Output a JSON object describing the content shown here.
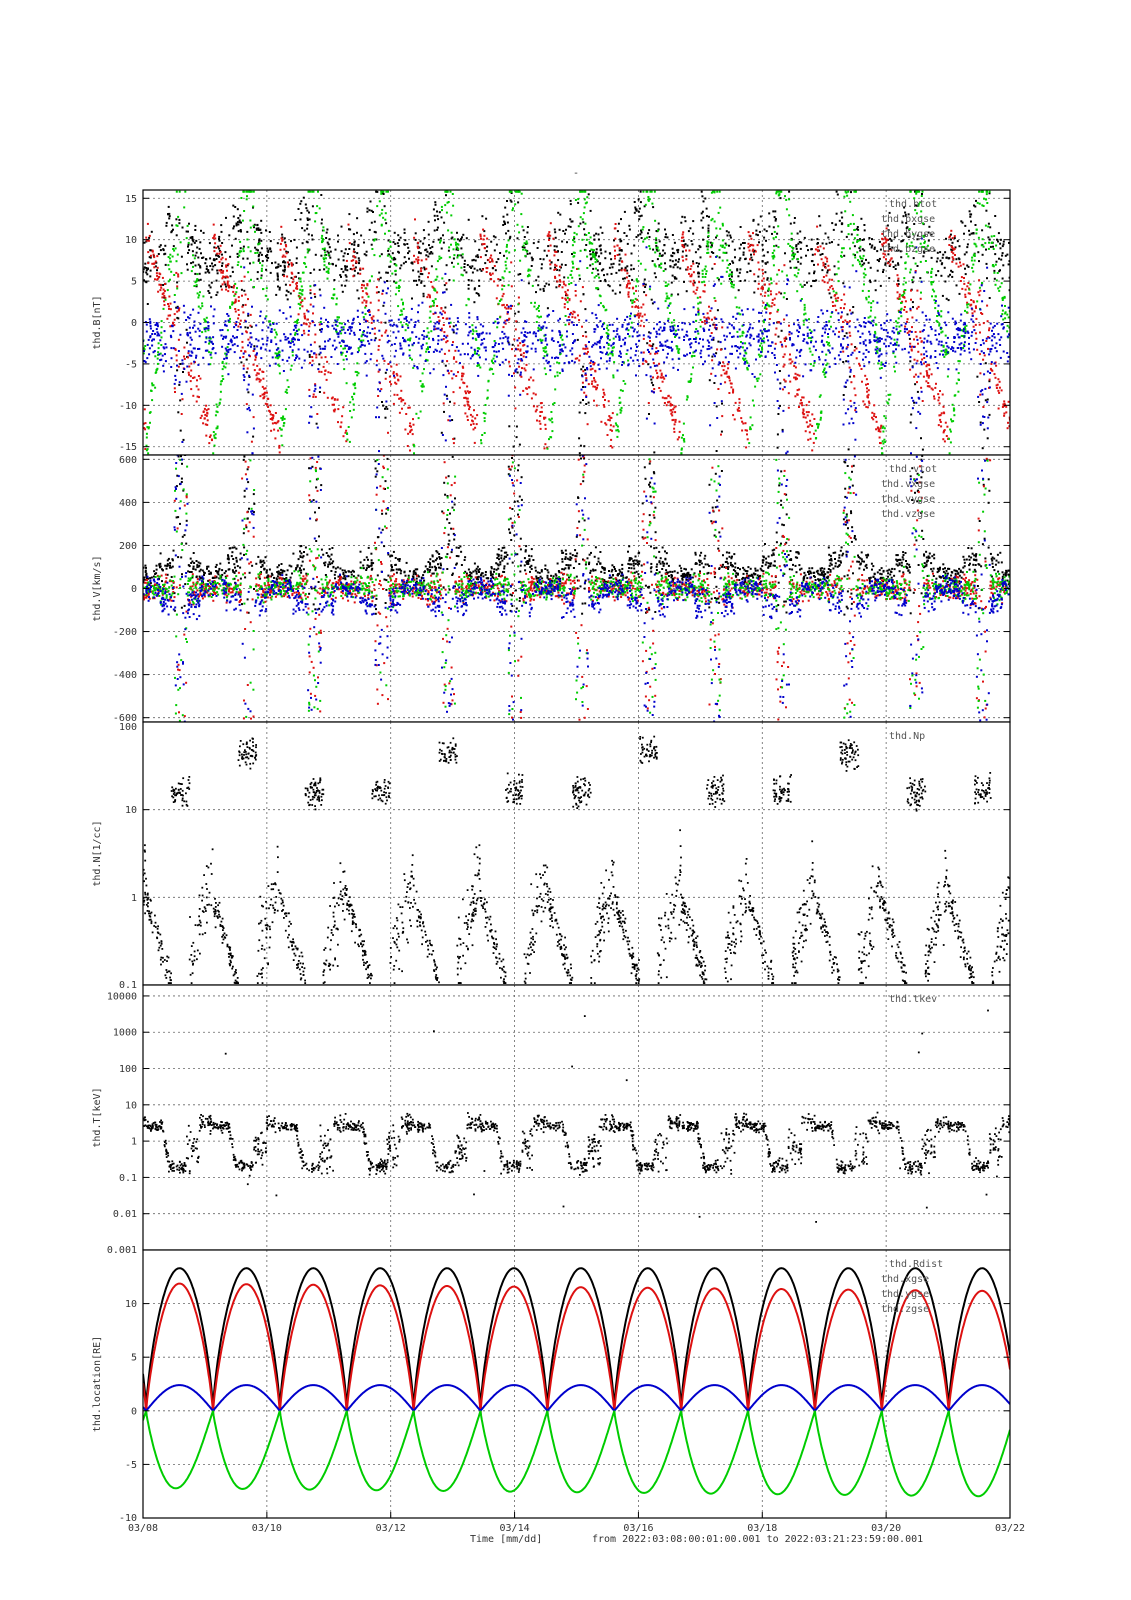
{
  "page": {
    "title_mark": "-",
    "footer": {
      "time_axis_label": "Time [mm/dd]",
      "range_text": "from 2022:03:08:00:01:00.001  to  2022:03:21:23:59:00.001"
    }
  },
  "chart_data": [
    {
      "type": "scatter",
      "ylabel": "thd.B[nT]",
      "ylim": [
        -16,
        16
      ],
      "yticks": [
        15,
        10,
        5,
        0,
        -5,
        -10,
        -15
      ],
      "ytick_labels": [
        "15",
        "10",
        "5",
        "0",
        "-5",
        "-10",
        "-15"
      ],
      "log": false,
      "grid": true,
      "legend_placement": "top-right",
      "legend": [
        "thd.btot",
        "thd.bxgse",
        "thd.bygse",
        "thd.bzgse"
      ],
      "series": [
        {
          "name": "thd.btot",
          "color": "#000000"
        },
        {
          "name": "thd.bxgse",
          "color": "#dd1111"
        },
        {
          "name": "thd.bygse",
          "color": "#00cc00"
        },
        {
          "name": "thd.bzgse",
          "color": "#0000cc"
        }
      ]
    },
    {
      "type": "scatter",
      "ylabel": "thd.V[km/s]",
      "ylim": [
        -620,
        620
      ],
      "yticks": [
        600,
        400,
        200,
        0,
        -200,
        -400,
        -600
      ],
      "ytick_labels": [
        "600",
        "400",
        "200",
        "0",
        "-200",
        "-400",
        "-600"
      ],
      "log": false,
      "grid": true,
      "legend_placement": "top-right",
      "legend": [
        "thd.vtot",
        "thd.vxgse",
        "thd.vygse",
        "thd.vzgse"
      ],
      "series": [
        {
          "name": "thd.vtot",
          "color": "#000000"
        },
        {
          "name": "thd.vxgse",
          "color": "#dd1111"
        },
        {
          "name": "thd.vygse",
          "color": "#00cc00"
        },
        {
          "name": "thd.vzgse",
          "color": "#0000cc"
        }
      ]
    },
    {
      "type": "scatter",
      "ylabel": "thd.N[1/cc]",
      "ylim": [
        0.1,
        100
      ],
      "yticks": [
        100,
        10,
        1,
        0.1
      ],
      "ytick_labels": [
        "100",
        "10",
        "1",
        "0.1"
      ],
      "log": true,
      "grid": true,
      "legend_placement": "top-right",
      "legend": [
        "thd.Np"
      ],
      "series": [
        {
          "name": "thd.Np",
          "color": "#000000"
        }
      ]
    },
    {
      "type": "scatter",
      "ylabel": "thd.T[keV]",
      "ylim": [
        0.001,
        20000
      ],
      "yticks": [
        10000,
        1000,
        100,
        10,
        1,
        0.1,
        0.01,
        0.001
      ],
      "ytick_labels": [
        "10000",
        "1000",
        "100",
        "10",
        "1",
        "0.1",
        "0.01",
        "0.001"
      ],
      "log": true,
      "grid": true,
      "legend_placement": "top-right",
      "legend": [
        "thd.tkev"
      ],
      "series": [
        {
          "name": "thd.tkev",
          "color": "#000000"
        }
      ]
    },
    {
      "type": "line",
      "ylabel": "thd.location[RE]",
      "ylim": [
        -10,
        15
      ],
      "yticks": [
        10,
        5,
        0,
        -5,
        -10
      ],
      "ytick_labels": [
        "10",
        "5",
        "0",
        "-5",
        "-10"
      ],
      "log": false,
      "grid": true,
      "legend_placement": "top-right",
      "legend": [
        "thd.Rdist",
        "thd.xgse",
        "thd.ygse",
        "thd.zgse"
      ],
      "series": [
        {
          "name": "thd.Rdist",
          "color": "#000000",
          "peak": 13.3
        },
        {
          "name": "thd.xgse",
          "color": "#dd1111",
          "peak": 12.2
        },
        {
          "name": "thd.ygse",
          "color": "#0000cc",
          "peak": 2.4
        },
        {
          "name": "thd.zgse",
          "color": "#00cc00",
          "trough": -7.2
        }
      ]
    }
  ],
  "x_axis": {
    "range": [
      "2022-03-08",
      "2022-03-22"
    ],
    "ticks": [
      "2022-03-08",
      "2022-03-10",
      "2022-03-12",
      "2022-03-14",
      "2022-03-16",
      "2022-03-18",
      "2022-03-20",
      "2022-03-22"
    ],
    "tick_labels": [
      "03/08",
      "03/10",
      "03/12",
      "03/14",
      "03/16",
      "03/18",
      "03/20",
      "03/22"
    ],
    "orbit_period_days": 1.08
  }
}
